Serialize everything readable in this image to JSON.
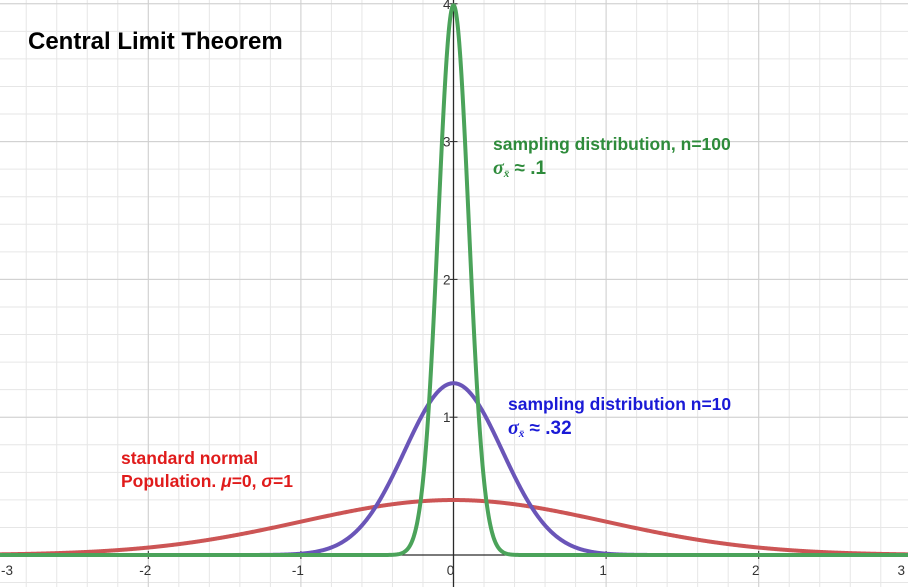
{
  "title": "Central Limit Theorem",
  "annotations": {
    "green_line1": "sampling distribution, n=100",
    "green_sigma": "σ",
    "green_sub": "x̄",
    "green_value": " ≈ .1",
    "blue_line1": "sampling distribution n=10",
    "blue_sigma": "σ",
    "blue_sub": "x̄",
    "blue_value": " ≈ .32",
    "red_line1": "standard normal",
    "red_line2_prefix": "Population. ",
    "red_mu": "μ",
    "red_mu_value": "=0, ",
    "red_sigma": "σ",
    "red_sigma_value": "=1"
  },
  "colors": {
    "red": "#cc5555",
    "blue": "#6a55b8",
    "green": "#4ba35a",
    "grid": "#e6e6e6",
    "axis": "#2a2a2a"
  },
  "chart_data": {
    "type": "line",
    "title": "Central Limit Theorem",
    "xlim": [
      -3,
      3
    ],
    "ylim": [
      -0.05,
      4.05
    ],
    "grid": true,
    "x_ticks": [
      -3,
      -2,
      -1,
      0,
      1,
      2,
      3
    ],
    "y_ticks": [
      1,
      2,
      3,
      4
    ],
    "series": [
      {
        "name": "standard normal Population. μ=0, σ=1",
        "mean": 0,
        "sd": 1,
        "color": "#cc5555"
      },
      {
        "name": "sampling distribution n=10",
        "mean": 0,
        "sd": 0.32,
        "color": "#6a55b8"
      },
      {
        "name": "sampling distribution, n=100",
        "mean": 0,
        "sd": 0.1,
        "color": "#4ba35a"
      }
    ]
  }
}
